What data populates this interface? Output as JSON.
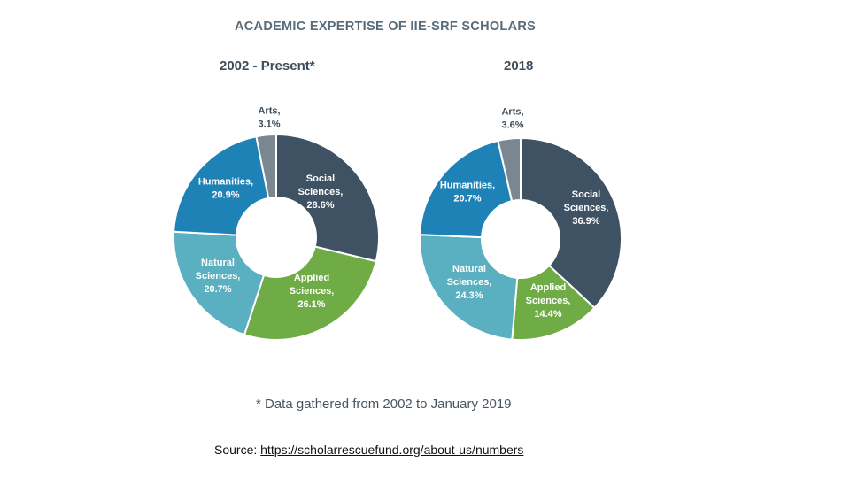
{
  "chart_data": [
    {
      "type": "pie",
      "title": "ACADEMIC EXPERTISE OF IIE-SRF SCHOLARS",
      "subtitle": "2002 - Present*",
      "slices": [
        {
          "label": "Social Sciences,",
          "value": 28.6,
          "value_text": "28.6%",
          "color": "#3e5263"
        },
        {
          "label": "Applied Sciences,",
          "value": 26.1,
          "value_text": "26.1%",
          "color": "#6fac46"
        },
        {
          "label": "Natural Sciences,",
          "value": 20.7,
          "value_text": "20.7%",
          "color": "#5ab0c0"
        },
        {
          "label": "Humanities,",
          "value": 20.9,
          "value_text": "20.9%",
          "color": "#1f82b6"
        },
        {
          "label": "Arts,",
          "value": 3.1,
          "value_text": "3.1%",
          "color": "#7a8791"
        }
      ]
    },
    {
      "type": "pie",
      "title": "ACADEMIC EXPERTISE OF IIE-SRF SCHOLARS",
      "subtitle": "2018",
      "slices": [
        {
          "label": "Social Sciences,",
          "value": 36.9,
          "value_text": "36.9%",
          "color": "#3e5263"
        },
        {
          "label": "Applied Sciences,",
          "value": 14.4,
          "value_text": "14.4%",
          "color": "#6fac46"
        },
        {
          "label": "Natural Sciences,",
          "value": 24.3,
          "value_text": "24.3%",
          "color": "#5ab0c0"
        },
        {
          "label": "Humanities,",
          "value": 20.7,
          "value_text": "20.7%",
          "color": "#1f82b6"
        },
        {
          "label": "Arts,",
          "value": 3.6,
          "value_text": "3.6%",
          "color": "#7a8791"
        }
      ]
    }
  ],
  "header": {
    "title": "ACADEMIC EXPERTISE OF IIE-SRF SCHOLARS",
    "left_subtitle": "2002 - Present*",
    "right_subtitle": "2018"
  },
  "footnote": "* Data gathered from 2002 to January 2019",
  "source": {
    "label": "Source:",
    "link_text": "https://scholarrescuefund.org/about-us/numbers"
  }
}
